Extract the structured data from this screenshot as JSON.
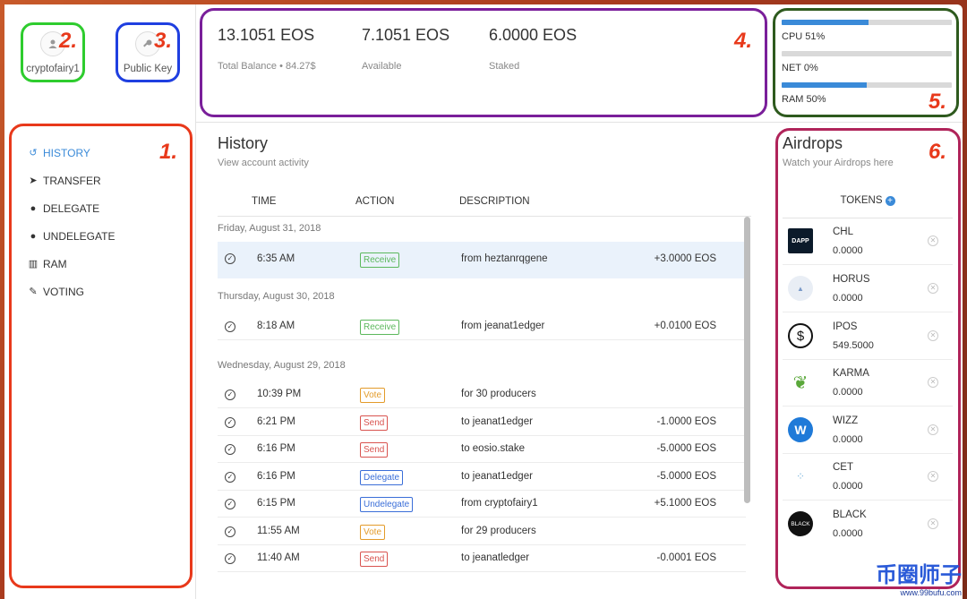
{
  "account": {
    "username": "cryptofairy1",
    "public_key_label": "Public Key"
  },
  "annotations": {
    "n1": "1.",
    "n2": "2.",
    "n3": "3.",
    "n4": "4.",
    "n5": "5.",
    "n6": "6."
  },
  "nav": [
    {
      "label": "HISTORY",
      "icon": "history-icon"
    },
    {
      "label": "TRANSFER",
      "icon": "send-icon"
    },
    {
      "label": "DELEGATE",
      "icon": "delegate-icon"
    },
    {
      "label": "UNDELEGATE",
      "icon": "undelegate-icon"
    },
    {
      "label": "RAM",
      "icon": "chip-icon"
    },
    {
      "label": "VOTING",
      "icon": "edit-icon"
    }
  ],
  "balance": {
    "total": "13.1051 EOS",
    "total_label": "Total Balance • 84.27$",
    "available": "7.1051 EOS",
    "available_label": "Available",
    "staked": "6.0000 EOS",
    "staked_label": "Staked"
  },
  "resources": {
    "cpu": {
      "label": "CPU 51%",
      "percent": 51
    },
    "net": {
      "label": "NET 0%",
      "percent": 0
    },
    "ram": {
      "label": "RAM 50%",
      "percent": 50
    }
  },
  "history": {
    "title": "History",
    "subtitle": "View account activity",
    "columns": {
      "time": "TIME",
      "action": "ACTION",
      "description": "DESCRIPTION"
    },
    "dates": [
      "Friday, August 31, 2018",
      "Thursday, August 30, 2018",
      "Wednesday, August 29, 2018"
    ],
    "rows": [
      {
        "time": "6:35 AM",
        "action": "Receive",
        "desc": "from heztanrqgene",
        "amount": "+3.0000 EOS"
      },
      {
        "time": "8:18 AM",
        "action": "Receive",
        "desc": "from jeanat1edger",
        "amount": "+0.0100 EOS"
      },
      {
        "time": "10:39 PM",
        "action": "Vote",
        "desc": "for 30 producers",
        "amount": ""
      },
      {
        "time": "6:21 PM",
        "action": "Send",
        "desc": "to jeanat1edger",
        "amount": "-1.0000 EOS"
      },
      {
        "time": "6:16 PM",
        "action": "Send",
        "desc": "to eosio.stake",
        "amount": "-5.0000 EOS"
      },
      {
        "time": "6:16 PM",
        "action": "Delegate",
        "desc": "to jeanat1edger",
        "amount": "-5.0000 EOS"
      },
      {
        "time": "6:15 PM",
        "action": "Undelegate",
        "desc": "from cryptofairy1",
        "amount": "+5.1000 EOS"
      },
      {
        "time": "11:55 AM",
        "action": "Vote",
        "desc": "for 29 producers",
        "amount": ""
      },
      {
        "time": "11:40 AM",
        "action": "Send",
        "desc": "to jeanatledger",
        "amount": "-0.0001 EOS"
      }
    ]
  },
  "airdrops": {
    "title": "Airdrops",
    "subtitle": "Watch your Airdrops here",
    "tokens_label": "TOKENS",
    "tokens": [
      {
        "name": "CHL",
        "value": "0.0000",
        "logo_text": "DAPP",
        "color": "#0b1a2a"
      },
      {
        "name": "HORUS",
        "value": "0.0000",
        "logo_text": "",
        "color": "#e9eef5"
      },
      {
        "name": "IPOS",
        "value": "549.5000",
        "logo_text": "$",
        "color": "#ffffff"
      },
      {
        "name": "KARMA",
        "value": "0.0000",
        "logo_text": "",
        "color": "#5aa83a"
      },
      {
        "name": "WIZZ",
        "value": "0.0000",
        "logo_text": "W",
        "color": "#1f7ad8"
      },
      {
        "name": "CET",
        "value": "0.0000",
        "logo_text": "",
        "color": "#e8f3fb"
      },
      {
        "name": "BLACK",
        "value": "0.0000",
        "logo_text": "BLACK",
        "color": "#111111"
      }
    ]
  },
  "watermark": {
    "text": "币圈师子",
    "url": "www.99bufu.com"
  }
}
